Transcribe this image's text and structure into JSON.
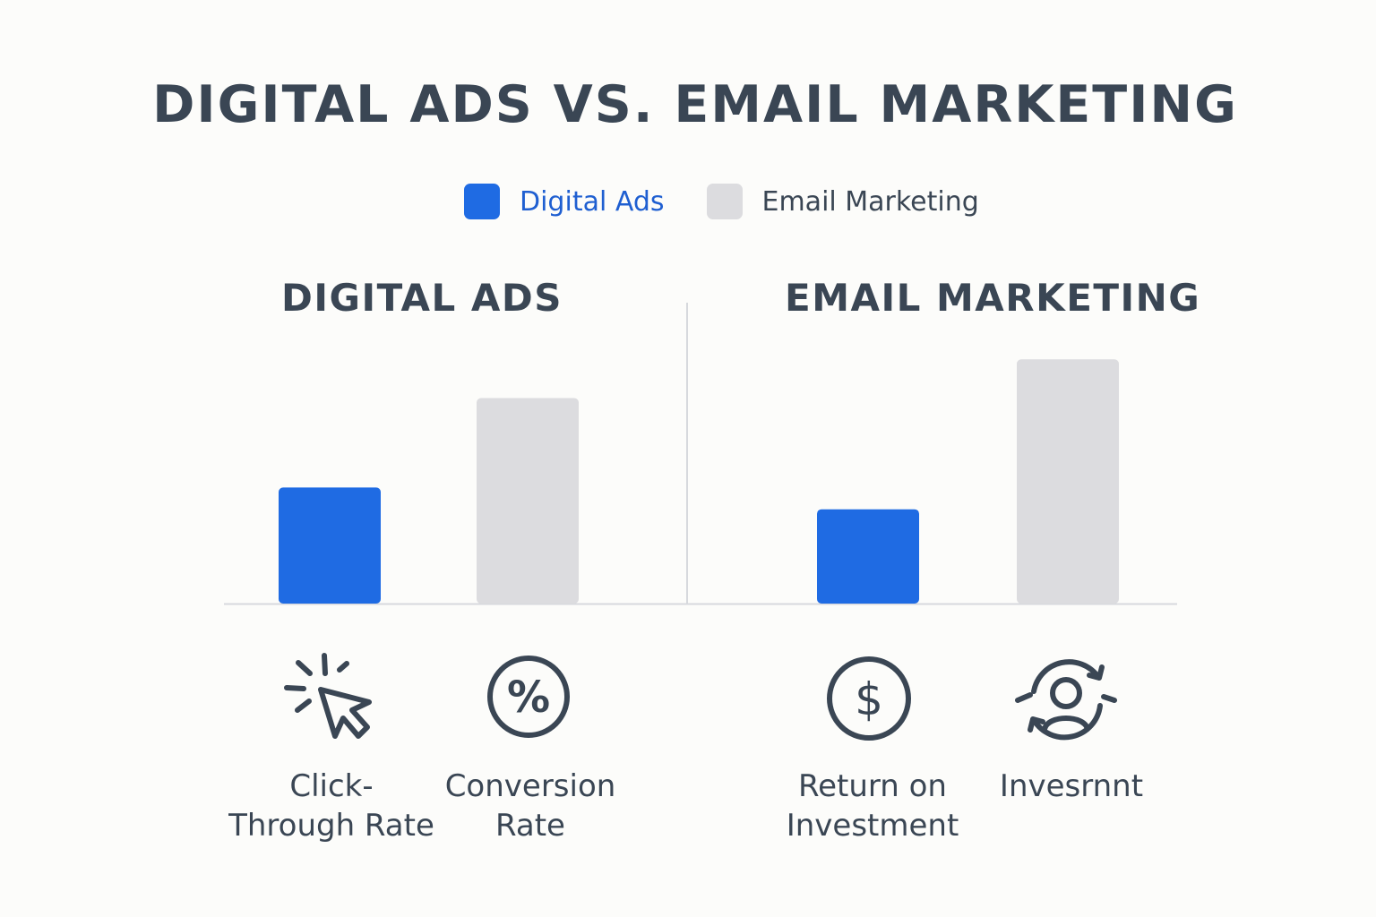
{
  "title": "DIGITAL ADS VS. EMAIL MARKETING",
  "legend": {
    "items": [
      {
        "label": "Digital Ads",
        "color": "#1f6be3",
        "text_color": "#1f5fd1"
      },
      {
        "label": "Email Marketing",
        "color": "#dcdcdf",
        "text_color": "#3a4654"
      }
    ]
  },
  "panels": [
    {
      "title": "DIGITAL ADS"
    },
    {
      "title": "EMAIL MARKETING"
    }
  ],
  "metrics": [
    {
      "label": "Click-\nThrough Rate",
      "icon": "cursor-click-icon"
    },
    {
      "label": "Conversion\nRate",
      "icon": "percent-icon"
    },
    {
      "label": "Return on\nInvestment",
      "icon": "dollar-icon"
    },
    {
      "label": "Invesrnnt",
      "icon": "user-cycle-icon"
    }
  ],
  "chart_data": {
    "type": "bar",
    "title": "DIGITAL ADS VS. EMAIL MARKETING",
    "legend": [
      "Digital Ads",
      "Email Marketing"
    ],
    "legend_position": "top-center",
    "grid": false,
    "ylim": [
      0,
      100
    ],
    "panels": [
      {
        "title": "DIGITAL ADS",
        "series": [
          {
            "name": "Digital Ads",
            "values": [
              48
            ]
          },
          {
            "name": "Email Marketing",
            "values": [
              85
            ]
          }
        ]
      },
      {
        "title": "EMAIL MARKETING",
        "series": [
          {
            "name": "Digital Ads",
            "values": [
              39
            ]
          },
          {
            "name": "Email Marketing",
            "values": [
              101
            ]
          }
        ]
      }
    ],
    "colors": {
      "Digital Ads": "#1f6be3",
      "Email Marketing": "#dcdcdf"
    }
  }
}
